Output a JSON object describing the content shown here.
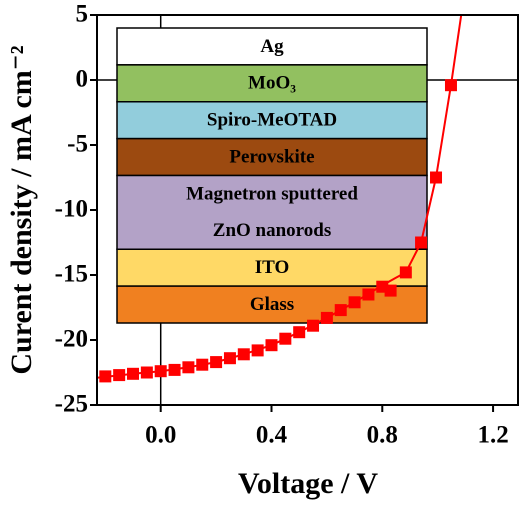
{
  "chart_data": {
    "type": "line",
    "xlabel": "Voltage / V",
    "ylabel": "Curent density / mA cm⁻²",
    "xlim": [
      -0.23,
      1.29
    ],
    "ylim": [
      -25,
      5
    ],
    "xticks": [
      {
        "value": 0,
        "label": "0.0"
      },
      0.4,
      0.8,
      1.2
    ],
    "yticks": [
      5,
      0,
      -5,
      -10,
      -15,
      -20,
      -25
    ],
    "zero_lines": true,
    "series": [
      {
        "color": "#ff0000",
        "markers": false,
        "x": [
          -0.23,
          -0.1,
          0.0,
          0.1,
          0.2,
          0.3,
          0.4,
          0.5,
          0.6,
          0.7,
          0.8,
          0.85,
          0.885,
          0.94,
          0.994,
          1.048,
          1.085
        ],
        "values": [
          -22.9,
          -22.6,
          -22.4,
          -22.1,
          -21.7,
          -21.1,
          -20.4,
          -19.4,
          -18.3,
          -17.1,
          -15.8,
          -15.2,
          -14.8,
          -12.5,
          -7.5,
          -0.4,
          5
        ]
      },
      {
        "color": "#ff0000",
        "markers": true,
        "x": [
          -0.2,
          -0.15,
          -0.1,
          -0.05,
          0.0,
          0.05,
          0.1,
          0.15,
          0.2,
          0.25,
          0.3,
          0.35,
          0.4,
          0.45,
          0.5,
          0.55,
          0.6,
          0.65,
          0.7,
          0.75,
          0.8,
          0.83,
          0.885,
          0.94,
          0.994,
          1.048
        ],
        "values": [
          -22.8,
          -22.7,
          -22.6,
          -22.5,
          -22.4,
          -22.3,
          -22.1,
          -21.9,
          -21.7,
          -21.4,
          -21.1,
          -20.8,
          -20.4,
          -19.9,
          -19.4,
          -18.9,
          -18.3,
          -17.7,
          -17.1,
          -16.5,
          -15.9,
          -16.2,
          -14.8,
          -12.5,
          -7.5,
          -0.4
        ]
      }
    ],
    "inset": {
      "layers": [
        {
          "label": [
            "Ag"
          ],
          "color": "#ffffff"
        },
        {
          "label": [
            "MoO₃"
          ],
          "color": "#92c060"
        },
        {
          "label": [
            "Spiro-MeOTAD"
          ],
          "color": "#92cddc"
        },
        {
          "label": [
            "Perovskite"
          ],
          "color": "#9c4a10"
        },
        {
          "label": [
            "Magnetron sputtered",
            "ZnO nanorods"
          ],
          "color": "#b3a2c7"
        },
        {
          "label": [
            "ITO"
          ],
          "color": "#ffd966"
        },
        {
          "label": [
            "Glass"
          ],
          "color": "#f08020"
        }
      ]
    }
  }
}
